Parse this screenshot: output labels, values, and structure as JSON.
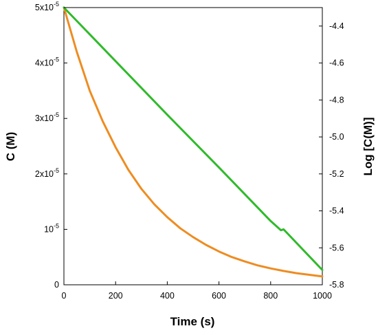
{
  "chart_data": {
    "type": "line",
    "title": "",
    "xlabel": "Time (s)",
    "ylabel_left": "C (M)",
    "ylabel_right": "Log [C(M)]",
    "xlim": [
      0,
      1000
    ],
    "ylim_left": [
      0,
      5e-05
    ],
    "ylim_right": [
      -5.8,
      -4.3
    ],
    "x_ticks": [
      {
        "value": 0,
        "label": "0"
      },
      {
        "value": 200,
        "label": "200"
      },
      {
        "value": 400,
        "label": "400"
      },
      {
        "value": 600,
        "label": "600"
      },
      {
        "value": 800,
        "label": "800"
      },
      {
        "value": 1000,
        "label": "1000"
      }
    ],
    "y_left_ticks": [
      {
        "value": 0,
        "base": "0",
        "exp": ""
      },
      {
        "value": 1e-05,
        "base": "10",
        "exp": "-5"
      },
      {
        "value": 2e-05,
        "base": "2x10",
        "exp": "-5"
      },
      {
        "value": 3e-05,
        "base": "3x10",
        "exp": "-5"
      },
      {
        "value": 4e-05,
        "base": "4x10",
        "exp": "-5"
      },
      {
        "value": 5e-05,
        "base": "5x10",
        "exp": "-5"
      }
    ],
    "y_right_ticks": [
      {
        "value": -4.4,
        "label": "-4.4"
      },
      {
        "value": -4.6,
        "label": "-4.6"
      },
      {
        "value": -4.8,
        "label": "-4.8"
      },
      {
        "value": -5.0,
        "label": "-5.0"
      },
      {
        "value": -5.2,
        "label": "-5.2"
      },
      {
        "value": -5.4,
        "label": "-5.4"
      },
      {
        "value": -5.6,
        "label": "-5.6"
      },
      {
        "value": -5.8,
        "label": "-5.8"
      }
    ],
    "grid": false,
    "legend": "none",
    "series": [
      {
        "axis": "left",
        "color": "#ee8c21",
        "x": [
          0,
          50,
          100,
          150,
          200,
          250,
          300,
          350,
          400,
          450,
          500,
          550,
          600,
          650,
          700,
          750,
          800,
          850,
          900,
          950,
          1000
        ],
        "y": [
          5e-05,
          4.2e-05,
          3.5e-05,
          2.95e-05,
          2.48e-05,
          2.07e-05,
          1.73e-05,
          1.45e-05,
          1.22e-05,
          1.02e-05,
          8.6e-06,
          7.2e-06,
          6e-06,
          5e-06,
          4.2e-06,
          3.5e-06,
          2.95e-06,
          2.5e-06,
          2.1e-06,
          1.8e-06,
          1.5e-06
        ]
      },
      {
        "axis": "right",
        "color": "#2fba2a",
        "x": [
          0,
          200,
          400,
          600,
          800,
          840,
          850,
          1000
        ],
        "y": [
          -4.3,
          -4.59,
          -4.88,
          -5.165,
          -5.455,
          -5.505,
          -5.5,
          -5.72
        ]
      }
    ]
  }
}
